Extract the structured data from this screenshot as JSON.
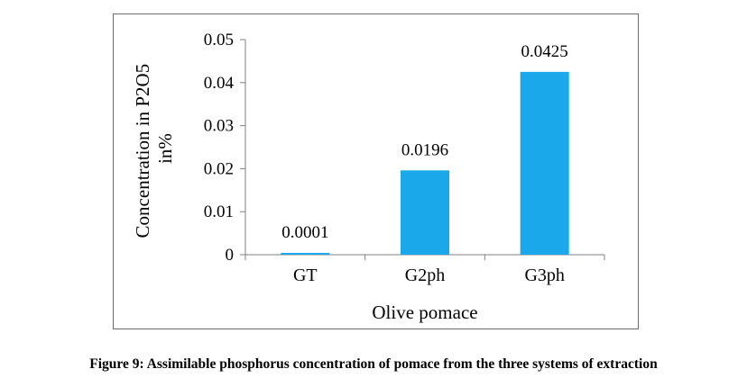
{
  "chart_data": {
    "type": "bar",
    "categories": [
      "GT",
      "G2ph",
      "G3ph"
    ],
    "values": [
      0.0001,
      0.0196,
      0.0425
    ],
    "data_labels": [
      "0.0001",
      "0.0196",
      "0.0425"
    ],
    "xlabel": "Olive pomace",
    "ylabel_lines": [
      "Concentration in P2O5",
      "in%"
    ],
    "ylim": [
      0,
      0.05
    ],
    "yticks": [
      0,
      0.01,
      0.02,
      0.03,
      0.04,
      0.05
    ],
    "ytick_labels": [
      "0",
      "0.01",
      "0.02",
      "0.03",
      "0.04",
      "0.05"
    ],
    "bar_color": "#1aa8ea",
    "grid": false,
    "legend": "none"
  },
  "caption": "Figure 9: Assimilable phosphorus concentration of pomace from the three systems of extraction"
}
